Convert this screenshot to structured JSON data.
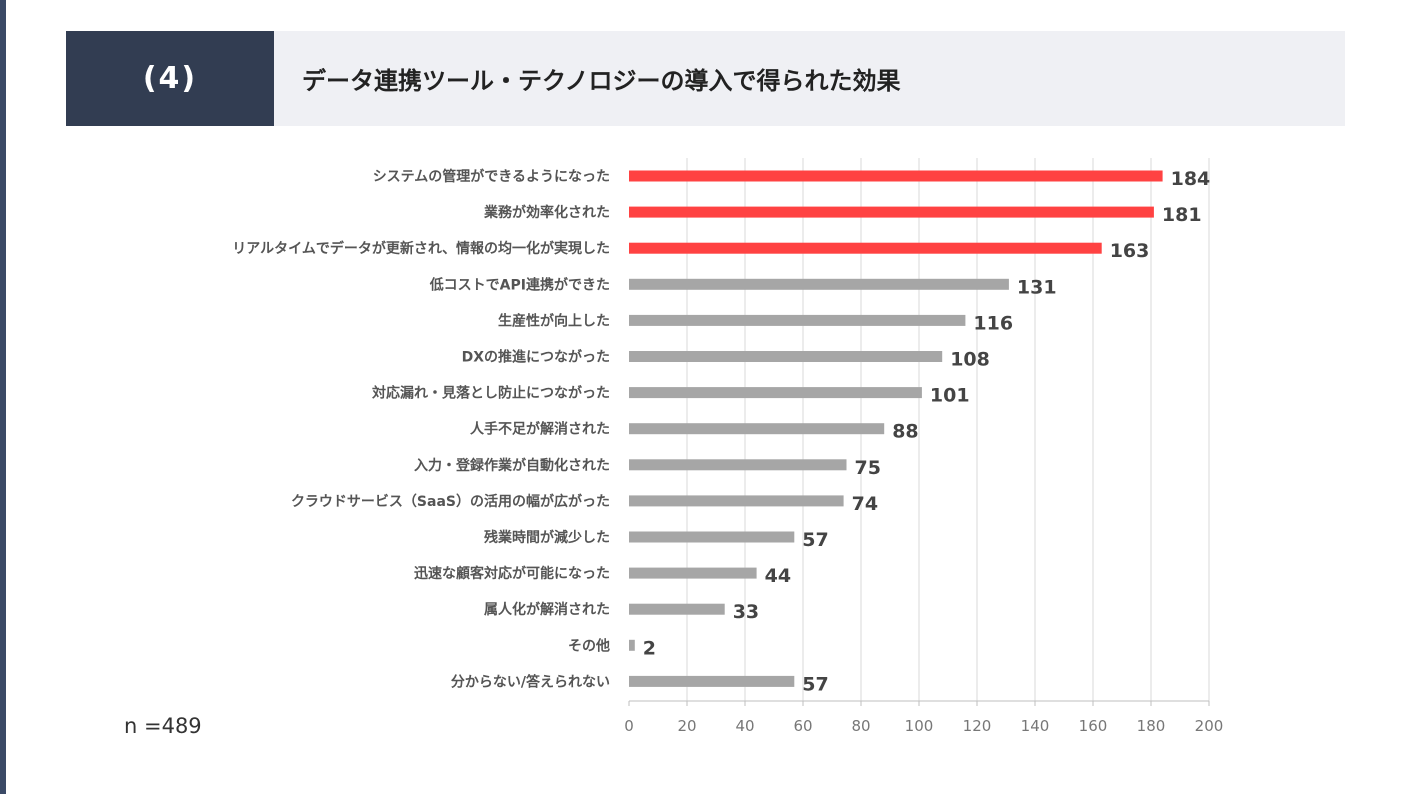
{
  "header": {
    "number": "(4)",
    "title": "データ連携ツール・テクノロジーの導入で得られた効果"
  },
  "sample_size": "n =489",
  "colors": {
    "highlight": "#ff4242",
    "normal": "#a6a6a6"
  },
  "chart_data": {
    "type": "bar",
    "orientation": "horizontal",
    "title": "データ連携ツール・テクノロジーの導入で得られた効果",
    "categories": [
      "システムの管理ができるようになった",
      "業務が効率化された",
      "リアルタイムでデータが更新され、情報の均一化が実現した",
      "低コストでAPI連携ができた",
      "生産性が向上した",
      "DXの推進につながった",
      "対応漏れ・見落とし防止につながった",
      "人手不足が解消された",
      "入力・登録作業が自動化された",
      "クラウドサービス（SaaS）の活用の幅が広がった",
      "残業時間が減少した",
      "迅速な顧客対応が可能になった",
      "属人化が解消された",
      "その他",
      "分からない/答えられない"
    ],
    "values": [
      184,
      181,
      163,
      131,
      116,
      108,
      101,
      88,
      75,
      74,
      57,
      44,
      33,
      2,
      57
    ],
    "highlighted": [
      true,
      true,
      true,
      false,
      false,
      false,
      false,
      false,
      false,
      false,
      false,
      false,
      false,
      false,
      false
    ],
    "xlim": [
      0,
      200
    ],
    "xticks": [
      0,
      20,
      40,
      60,
      80,
      100,
      120,
      140,
      160,
      180,
      200
    ],
    "grid": true
  }
}
